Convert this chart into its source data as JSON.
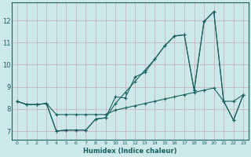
{
  "xlabel": "Humidex (Indice chaleur)",
  "bg_color": "#cce8e8",
  "grid_color": "#b8c8c8",
  "line_color": "#1a6060",
  "xlim": [
    -0.5,
    23.5
  ],
  "ylim": [
    6.6,
    12.8
  ],
  "xticks": [
    0,
    1,
    2,
    3,
    4,
    5,
    6,
    7,
    8,
    9,
    10,
    11,
    12,
    13,
    14,
    15,
    16,
    17,
    18,
    19,
    20,
    21,
    22,
    23
  ],
  "yticks": [
    7,
    8,
    9,
    10,
    11,
    12
  ],
  "series1_x": [
    0,
    1,
    2,
    3,
    4,
    5,
    6,
    7,
    8,
    9,
    10,
    11,
    12,
    13,
    14,
    15,
    16,
    17,
    18,
    19,
    20,
    21,
    22,
    23
  ],
  "series1_y": [
    8.35,
    8.2,
    8.2,
    8.25,
    7.75,
    7.75,
    7.75,
    7.75,
    7.75,
    7.75,
    7.95,
    8.05,
    8.15,
    8.25,
    8.35,
    8.45,
    8.55,
    8.65,
    8.75,
    8.85,
    8.95,
    8.35,
    8.35,
    8.65
  ],
  "series2_x": [
    0,
    1,
    2,
    3,
    4,
    5,
    6,
    7,
    8,
    9,
    10,
    11,
    12,
    13,
    14,
    15,
    16,
    17,
    18,
    19,
    20,
    21,
    22,
    23
  ],
  "series2_y": [
    8.35,
    8.2,
    8.2,
    8.25,
    7.0,
    7.05,
    7.05,
    7.05,
    7.55,
    7.6,
    8.55,
    8.5,
    9.45,
    9.65,
    10.25,
    10.85,
    11.3,
    11.35,
    8.85,
    11.95,
    12.4,
    8.35,
    7.5,
    8.65
  ],
  "series3_x": [
    0,
    1,
    2,
    3,
    4,
    5,
    6,
    7,
    8,
    9,
    10,
    11,
    12,
    13,
    14,
    15,
    16,
    17,
    18,
    19,
    20,
    21,
    22,
    23
  ],
  "series3_y": [
    8.35,
    8.2,
    8.2,
    8.25,
    7.0,
    7.05,
    7.05,
    7.05,
    7.55,
    7.6,
    8.25,
    8.75,
    9.25,
    9.75,
    10.25,
    10.85,
    11.3,
    11.35,
    8.85,
    11.95,
    12.4,
    8.35,
    7.5,
    8.65
  ]
}
